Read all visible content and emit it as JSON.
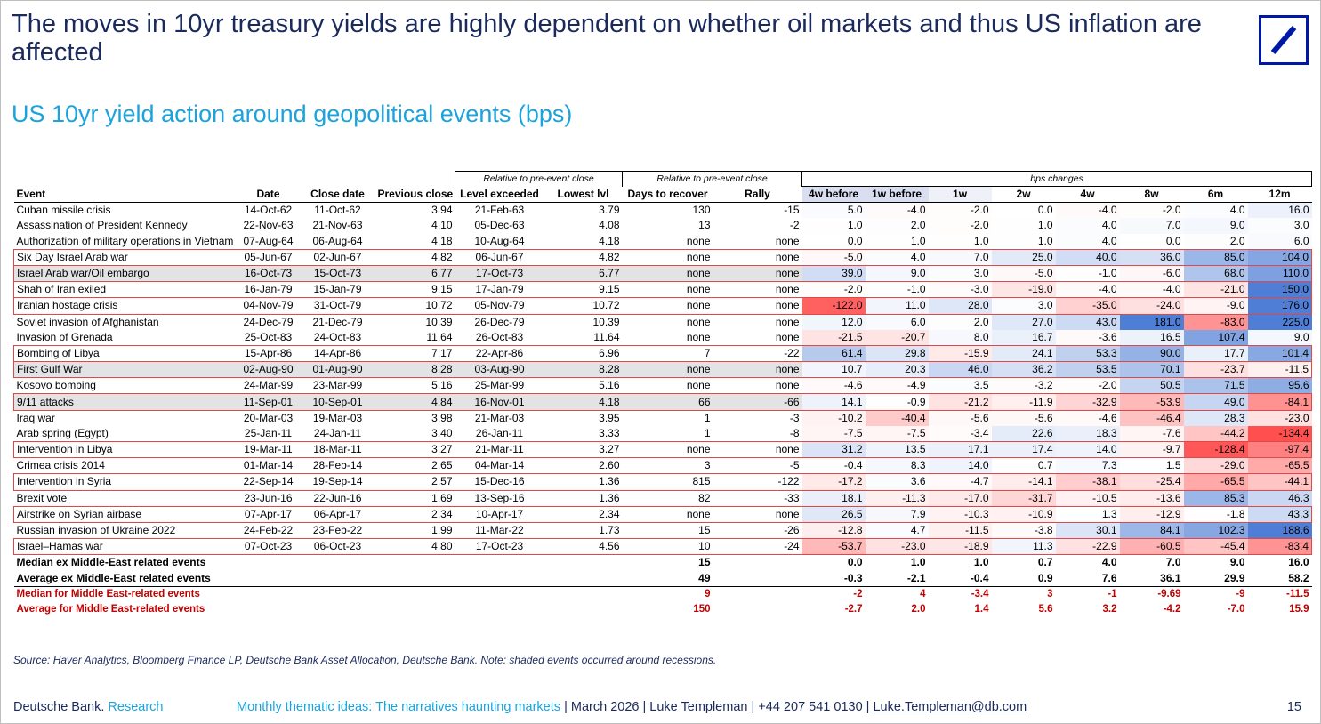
{
  "title": "The moves in 10yr treasury yields are highly dependent on whether oil markets and thus US inflation are affected",
  "subtitle": "US 10yr yield action around geopolitical events (bps)",
  "logo_name": "deutsche-bank-logo",
  "group_headers": {
    "relative1": "Relative to pre-event close",
    "relative2": "Relative to pre-event close",
    "bps": "bps changes"
  },
  "columns": [
    "Event",
    "Date",
    "Close date",
    "Previous close",
    "Level exceeded",
    "Lowest lvl",
    "Days to recover",
    "Rally",
    "4w before",
    "1w before",
    "1w",
    "2w",
    "4w",
    "8w",
    "6m",
    "12m"
  ],
  "rows": [
    {
      "event": "Cuban missile crisis",
      "date": "14-Oct-62",
      "close_date": "11-Oct-62",
      "prev_close": "3.94",
      "level_exceeded": "21-Feb-63",
      "lowest": "3.79",
      "days": "130",
      "rally": "-15",
      "bps": [
        "5.0",
        "-4.0",
        "-2.0",
        "0.0",
        "-4.0",
        "-2.0",
        "4.0",
        "16.0"
      ],
      "shaded": false,
      "boxed": false
    },
    {
      "event": "Assassination of President Kennedy",
      "date": "22-Nov-63",
      "close_date": "21-Nov-63",
      "prev_close": "4.10",
      "level_exceeded": "05-Dec-63",
      "lowest": "4.08",
      "days": "13",
      "rally": "-2",
      "bps": [
        "1.0",
        "2.0",
        "-2.0",
        "1.0",
        "4.0",
        "7.0",
        "9.0",
        "3.0"
      ],
      "shaded": false,
      "boxed": false
    },
    {
      "event": "Authorization of military operations in Vietnam",
      "date": "07-Aug-64",
      "close_date": "06-Aug-64",
      "prev_close": "4.18",
      "level_exceeded": "10-Aug-64",
      "lowest": "4.18",
      "days": "none",
      "rally": "none",
      "bps": [
        "0.0",
        "1.0",
        "1.0",
        "1.0",
        "4.0",
        "0.0",
        "2.0",
        "6.0"
      ],
      "shaded": false,
      "boxed": false
    },
    {
      "event": "Six Day Israel Arab war",
      "date": "05-Jun-67",
      "close_date": "02-Jun-67",
      "prev_close": "4.82",
      "level_exceeded": "06-Jun-67",
      "lowest": "4.82",
      "days": "none",
      "rally": "none",
      "bps": [
        "-5.0",
        "4.0",
        "7.0",
        "25.0",
        "40.0",
        "36.0",
        "85.0",
        "104.0"
      ],
      "shaded": false,
      "boxed": true
    },
    {
      "event": "Israel Arab war/Oil embargo",
      "date": "16-Oct-73",
      "close_date": "15-Oct-73",
      "prev_close": "6.77",
      "level_exceeded": "17-Oct-73",
      "lowest": "6.77",
      "days": "none",
      "rally": "none",
      "bps": [
        "39.0",
        "9.0",
        "3.0",
        "-5.0",
        "-1.0",
        "-6.0",
        "68.0",
        "110.0"
      ],
      "shaded": true,
      "boxed": true
    },
    {
      "event": "Shah of Iran exiled",
      "date": "16-Jan-79",
      "close_date": "15-Jan-79",
      "prev_close": "9.15",
      "level_exceeded": "17-Jan-79",
      "lowest": "9.15",
      "days": "none",
      "rally": "none",
      "bps": [
        "-2.0",
        "-1.0",
        "-3.0",
        "-19.0",
        "-4.0",
        "-4.0",
        "-21.0",
        "150.0"
      ],
      "shaded": false,
      "boxed": true
    },
    {
      "event": "Iranian hostage crisis",
      "date": "04-Nov-79",
      "close_date": "31-Oct-79",
      "prev_close": "10.72",
      "level_exceeded": "05-Nov-79",
      "lowest": "10.72",
      "days": "none",
      "rally": "none",
      "bps": [
        "-122.0",
        "11.0",
        "28.0",
        "3.0",
        "-35.0",
        "-24.0",
        "-9.0",
        "176.0"
      ],
      "shaded": false,
      "boxed": true
    },
    {
      "event": "Soviet invasion of Afghanistan",
      "date": "24-Dec-79",
      "close_date": "21-Dec-79",
      "prev_close": "10.39",
      "level_exceeded": "26-Dec-79",
      "lowest": "10.39",
      "days": "none",
      "rally": "none",
      "bps": [
        "12.0",
        "6.0",
        "2.0",
        "27.0",
        "43.0",
        "181.0",
        "-83.0",
        "225.0"
      ],
      "shaded": false,
      "boxed": false
    },
    {
      "event": "Invasion of Grenada",
      "date": "25-Oct-83",
      "close_date": "24-Oct-83",
      "prev_close": "11.64",
      "level_exceeded": "26-Oct-83",
      "lowest": "11.64",
      "days": "none",
      "rally": "none",
      "bps": [
        "-21.5",
        "-20.7",
        "8.0",
        "16.7",
        "-3.6",
        "16.5",
        "107.4",
        "9.0"
      ],
      "shaded": false,
      "boxed": false
    },
    {
      "event": "Bombing of Libya",
      "date": "15-Apr-86",
      "close_date": "14-Apr-86",
      "prev_close": "7.17",
      "level_exceeded": "22-Apr-86",
      "lowest": "6.96",
      "days": "7",
      "rally": "-22",
      "bps": [
        "61.4",
        "29.8",
        "-15.9",
        "24.1",
        "53.3",
        "90.0",
        "17.7",
        "101.4"
      ],
      "shaded": false,
      "boxed": true
    },
    {
      "event": "First Gulf War",
      "date": "02-Aug-90",
      "close_date": "01-Aug-90",
      "prev_close": "8.28",
      "level_exceeded": "03-Aug-90",
      "lowest": "8.28",
      "days": "none",
      "rally": "none",
      "bps": [
        "10.7",
        "20.3",
        "46.0",
        "36.2",
        "53.5",
        "70.1",
        "-23.7",
        "-11.5"
      ],
      "shaded": true,
      "boxed": true
    },
    {
      "event": "Kosovo bombing",
      "date": "24-Mar-99",
      "close_date": "23-Mar-99",
      "prev_close": "5.16",
      "level_exceeded": "25-Mar-99",
      "lowest": "5.16",
      "days": "none",
      "rally": "none",
      "bps": [
        "-4.6",
        "-4.9",
        "3.5",
        "-3.2",
        "-2.0",
        "50.5",
        "71.5",
        "95.6"
      ],
      "shaded": false,
      "boxed": false
    },
    {
      "event": "9/11 attacks",
      "date": "11-Sep-01",
      "close_date": "10-Sep-01",
      "prev_close": "4.84",
      "level_exceeded": "16-Nov-01",
      "lowest": "4.18",
      "days": "66",
      "rally": "-66",
      "bps": [
        "14.1",
        "-0.9",
        "-21.2",
        "-11.9",
        "-32.9",
        "-53.9",
        "49.0",
        "-84.1"
      ],
      "shaded": true,
      "boxed": true
    },
    {
      "event": "Iraq war",
      "date": "20-Mar-03",
      "close_date": "19-Mar-03",
      "prev_close": "3.98",
      "level_exceeded": "21-Mar-03",
      "lowest": "3.95",
      "days": "1",
      "rally": "-3",
      "bps": [
        "-10.2",
        "-40.4",
        "-5.6",
        "-5.6",
        "-4.6",
        "-46.4",
        "28.3",
        "-23.0"
      ],
      "shaded": false,
      "boxed": false
    },
    {
      "event": "Arab spring (Egypt)",
      "date": "25-Jan-11",
      "close_date": "24-Jan-11",
      "prev_close": "3.40",
      "level_exceeded": "26-Jan-11",
      "lowest": "3.33",
      "days": "1",
      "rally": "-8",
      "bps": [
        "-7.5",
        "-7.5",
        "-3.4",
        "22.6",
        "18.3",
        "-7.6",
        "-44.2",
        "-134.4"
      ],
      "shaded": false,
      "boxed": false
    },
    {
      "event": "Intervention in Libya",
      "date": "19-Mar-11",
      "close_date": "18-Mar-11",
      "prev_close": "3.27",
      "level_exceeded": "21-Mar-11",
      "lowest": "3.27",
      "days": "none",
      "rally": "none",
      "bps": [
        "31.2",
        "13.5",
        "17.1",
        "17.4",
        "14.0",
        "-9.7",
        "-128.4",
        "-97.4"
      ],
      "shaded": false,
      "boxed": true
    },
    {
      "event": "Crimea crisis 2014",
      "date": "01-Mar-14",
      "close_date": "28-Feb-14",
      "prev_close": "2.65",
      "level_exceeded": "04-Mar-14",
      "lowest": "2.60",
      "days": "3",
      "rally": "-5",
      "bps": [
        "-0.4",
        "8.3",
        "14.0",
        "0.7",
        "7.3",
        "1.5",
        "-29.0",
        "-65.5"
      ],
      "shaded": false,
      "boxed": false
    },
    {
      "event": "Intervention in Syria",
      "date": "22-Sep-14",
      "close_date": "19-Sep-14",
      "prev_close": "2.57",
      "level_exceeded": "15-Dec-16",
      "lowest": "1.36",
      "days": "815",
      "rally": "-122",
      "bps": [
        "-17.2",
        "3.6",
        "-4.7",
        "-14.1",
        "-38.1",
        "-25.4",
        "-65.5",
        "-44.1"
      ],
      "shaded": false,
      "boxed": true
    },
    {
      "event": "Brexit vote",
      "date": "23-Jun-16",
      "close_date": "22-Jun-16",
      "prev_close": "1.69",
      "level_exceeded": "13-Sep-16",
      "lowest": "1.36",
      "days": "82",
      "rally": "-33",
      "bps": [
        "18.1",
        "-11.3",
        "-17.0",
        "-31.7",
        "-10.5",
        "-13.6",
        "85.3",
        "46.3"
      ],
      "shaded": false,
      "boxed": false
    },
    {
      "event": "Airstrike on Syrian airbase",
      "date": "07-Apr-17",
      "close_date": "06-Apr-17",
      "prev_close": "2.34",
      "level_exceeded": "10-Apr-17",
      "lowest": "2.34",
      "days": "none",
      "rally": "none",
      "bps": [
        "26.5",
        "7.9",
        "-10.3",
        "-10.9",
        "1.3",
        "-12.9",
        "-1.8",
        "43.3"
      ],
      "shaded": false,
      "boxed": true
    },
    {
      "event": "Russian invasion of Ukraine 2022",
      "date": "24-Feb-22",
      "close_date": "23-Feb-22",
      "prev_close": "1.99",
      "level_exceeded": "11-Mar-22",
      "lowest": "1.73",
      "days": "15",
      "rally": "-26",
      "bps": [
        "-12.8",
        "4.7",
        "-11.5",
        "-3.8",
        "30.1",
        "84.1",
        "102.3",
        "188.6"
      ],
      "shaded": false,
      "boxed": false
    },
    {
      "event": "Israel–Hamas war",
      "date": "07-Oct-23",
      "close_date": "06-Oct-23",
      "prev_close": "4.80",
      "level_exceeded": "17-Oct-23",
      "lowest": "4.56",
      "days": "10",
      "rally": "-24",
      "bps": [
        "-53.7",
        "-23.0",
        "-18.9",
        "11.3",
        "-22.9",
        "-60.5",
        "-45.4",
        "-83.4"
      ],
      "shaded": false,
      "boxed": true
    }
  ],
  "summary": [
    {
      "label": "Median ex Middle-East related events",
      "days": "15",
      "bps": [
        "0.0",
        "1.0",
        "1.0",
        "0.7",
        "4.0",
        "7.0",
        "9.0",
        "16.0"
      ],
      "red": false
    },
    {
      "label": "Average ex Middle-East related events",
      "days": "49",
      "bps": [
        "-0.3",
        "-2.1",
        "-0.4",
        "0.9",
        "7.6",
        "36.1",
        "29.9",
        "58.2"
      ],
      "red": false
    },
    {
      "label": "Median for Middle East-related events",
      "days": "9",
      "bps": [
        "-2",
        "4",
        "-3.4",
        "3",
        "-1",
        "-9.69",
        "-9",
        "-11.5"
      ],
      "red": true
    },
    {
      "label": "Average for Middle East-related events",
      "days": "150",
      "bps": [
        "-2.7",
        "2.0",
        "1.4",
        "5.6",
        "3.2",
        "-4.2",
        "-7.0",
        "15.9"
      ],
      "red": true
    }
  ],
  "source": "Source: Haver Analytics, Bloomberg Finance LP, Deutsche Bank Asset Allocation, Deutsche Bank. Note: shaded events occurred around recessions.",
  "footer": {
    "brand": "Deutsche Bank.",
    "brand_research": "Research",
    "publication": "Monthly thematic ideas: The narratives haunting markets",
    "separator": "|",
    "date": "March 2026",
    "author": "Luke Templeman",
    "phone": "+44 207 541 0130",
    "email": "Luke.Templeman@db.com",
    "page": "15"
  },
  "colors": {
    "title": "#1b2a5c",
    "subtitle": "#1aa3dd",
    "logo": "#0018a8",
    "heat_positive": "#4f7ed6",
    "heat_negative": "#ff3b3b",
    "box_outline": "#e04848",
    "summary_red": "#c00000"
  }
}
